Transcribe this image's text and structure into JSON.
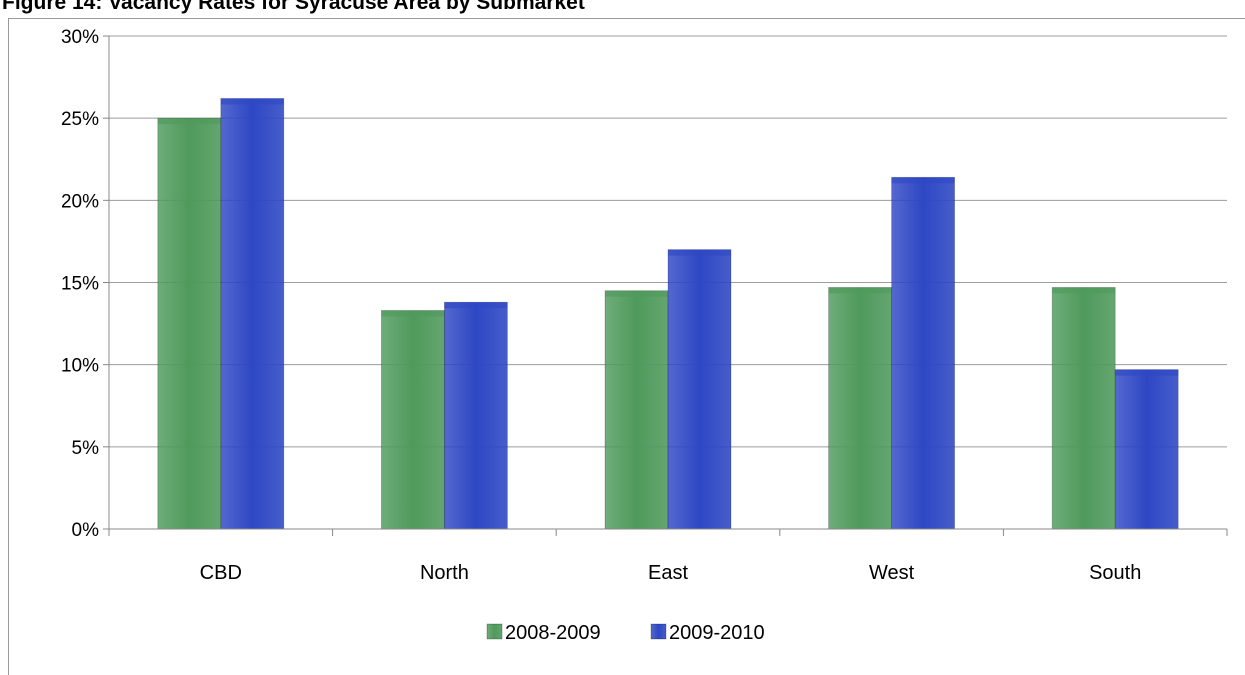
{
  "figure": {
    "title": "Figure 14: Vacancy Rates for Syracuse Area by Submarket"
  },
  "colors": {
    "series_1": "#4f9a5c",
    "series_2": "#2e47c4",
    "grid": "#9c9c9c",
    "axis": "#888888"
  },
  "chart_data": {
    "type": "bar",
    "title": "",
    "xlabel": "",
    "ylabel": "",
    "categories": [
      "CBD",
      "North",
      "East",
      "West",
      "South"
    ],
    "series": [
      {
        "name": "2008-2009",
        "values": [
          25.0,
          13.3,
          14.5,
          14.7,
          14.7
        ]
      },
      {
        "name": "2009-2010",
        "values": [
          26.2,
          13.8,
          17.0,
          21.4,
          9.7
        ]
      }
    ],
    "ylim": [
      0,
      30
    ],
    "yticks": [
      0,
      5,
      10,
      15,
      20,
      25,
      30
    ],
    "ytick_labels": [
      "0%",
      "5%",
      "10%",
      "15%",
      "20%",
      "25%",
      "30%"
    ],
    "grid": true,
    "legend": "bottom"
  }
}
